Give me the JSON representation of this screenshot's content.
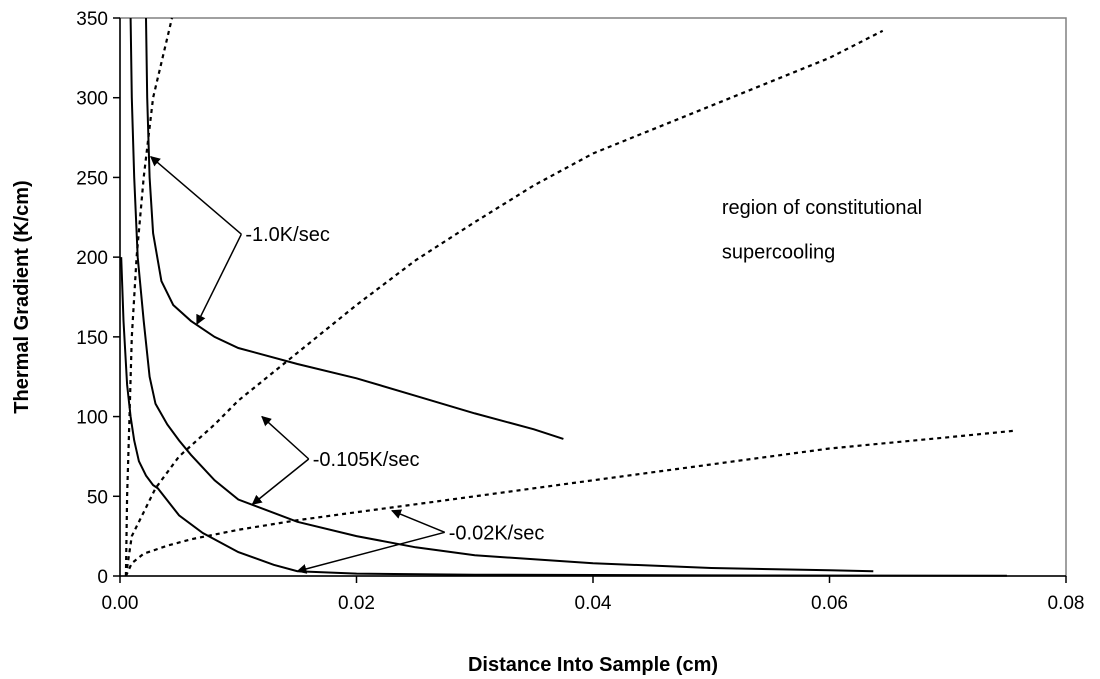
{
  "chart_data": {
    "type": "line",
    "xlabel": "Distance Into Sample (cm)",
    "ylabel": "Thermal Gradient (K/cm)",
    "xlim": [
      0,
      0.08
    ],
    "ylim": [
      0,
      350
    ],
    "x_ticks": [
      "0.00",
      "0.02",
      "0.04",
      "0.06",
      "0.08"
    ],
    "y_ticks": [
      "0",
      "50",
      "100",
      "150",
      "200",
      "250",
      "300",
      "350"
    ],
    "grid": false,
    "legend": "none",
    "series": [
      {
        "style": "solid",
        "points": [
          [
            0.0022,
            350
          ],
          [
            0.0023,
            300
          ],
          [
            0.0025,
            250
          ],
          [
            0.0028,
            215
          ],
          [
            0.0035,
            185
          ],
          [
            0.0045,
            170
          ],
          [
            0.006,
            160
          ],
          [
            0.008,
            150
          ],
          [
            0.01,
            143
          ],
          [
            0.015,
            133
          ],
          [
            0.02,
            124
          ],
          [
            0.025,
            113
          ],
          [
            0.03,
            102
          ],
          [
            0.035,
            92
          ],
          [
            0.0375,
            86
          ]
        ]
      },
      {
        "style": "solid",
        "points": [
          [
            0.0009,
            350
          ],
          [
            0.001,
            300
          ],
          [
            0.0012,
            250
          ],
          [
            0.0015,
            200
          ],
          [
            0.002,
            160
          ],
          [
            0.0025,
            125
          ],
          [
            0.003,
            108
          ],
          [
            0.004,
            95
          ],
          [
            0.005,
            85
          ],
          [
            0.006,
            76
          ],
          [
            0.008,
            60
          ],
          [
            0.01,
            48
          ],
          [
            0.015,
            34
          ],
          [
            0.02,
            25
          ],
          [
            0.025,
            18
          ],
          [
            0.03,
            13
          ],
          [
            0.04,
            8
          ],
          [
            0.05,
            5
          ],
          [
            0.06,
            3.6
          ],
          [
            0.0637,
            3
          ]
        ]
      },
      {
        "style": "solid",
        "points": [
          [
            0.0001,
            200
          ],
          [
            0.0003,
            160
          ],
          [
            0.0006,
            120
          ],
          [
            0.0009,
            100
          ],
          [
            0.0012,
            85
          ],
          [
            0.0016,
            72
          ],
          [
            0.0022,
            63
          ],
          [
            0.0028,
            57
          ],
          [
            0.0032,
            55
          ],
          [
            0.005,
            38
          ],
          [
            0.007,
            27
          ],
          [
            0.01,
            15
          ],
          [
            0.013,
            7
          ],
          [
            0.015,
            3
          ],
          [
            0.02,
            1.5
          ],
          [
            0.03,
            0.8
          ],
          [
            0.05,
            0.4
          ],
          [
            0.075,
            0.1
          ]
        ]
      },
      {
        "style": "dotted",
        "points": [
          [
            0.0005,
            0
          ],
          [
            0.0006,
            50
          ],
          [
            0.0008,
            100
          ],
          [
            0.001,
            150
          ],
          [
            0.0014,
            200
          ],
          [
            0.002,
            250
          ],
          [
            0.0028,
            300
          ],
          [
            0.0044,
            350
          ]
        ]
      },
      {
        "style": "dotted",
        "points": [
          [
            0.0005,
            0
          ],
          [
            0.001,
            25
          ],
          [
            0.002,
            40
          ],
          [
            0.003,
            55
          ],
          [
            0.005,
            75
          ],
          [
            0.008,
            95
          ],
          [
            0.01,
            110
          ],
          [
            0.015,
            140
          ],
          [
            0.02,
            170
          ],
          [
            0.025,
            198
          ],
          [
            0.03,
            222
          ],
          [
            0.035,
            245
          ],
          [
            0.04,
            265
          ],
          [
            0.05,
            295
          ],
          [
            0.06,
            325
          ],
          [
            0.0645,
            342
          ]
        ]
      },
      {
        "style": "dotted",
        "points": [
          [
            0.0005,
            0
          ],
          [
            0.001,
            8
          ],
          [
            0.002,
            14
          ],
          [
            0.004,
            19
          ],
          [
            0.006,
            23
          ],
          [
            0.01,
            29
          ],
          [
            0.015,
            35
          ],
          [
            0.02,
            40
          ],
          [
            0.025,
            45
          ],
          [
            0.03,
            50
          ],
          [
            0.04,
            60
          ],
          [
            0.05,
            70
          ],
          [
            0.06,
            80
          ],
          [
            0.07,
            87
          ],
          [
            0.0755,
            91
          ]
        ]
      }
    ],
    "annotations": [
      {
        "text": "-1.0K/sec",
        "x": 0.0106,
        "y": 210,
        "arrows": [
          [
            0.0026,
            263
          ],
          [
            0.0065,
            158
          ]
        ]
      },
      {
        "text": "-0.105K/sec",
        "x": 0.0163,
        "y": 69,
        "arrows": [
          [
            0.012,
            100
          ],
          [
            0.0112,
            45
          ]
        ]
      },
      {
        "text": "-0.02K/sec",
        "x": 0.0278,
        "y": 23,
        "arrows": [
          [
            0.023,
            41
          ],
          [
            0.015,
            3
          ]
        ]
      },
      {
        "text": "region of constitutional",
        "x": 0.0509,
        "y": 227
      },
      {
        "text": "supercooling",
        "x": 0.0509,
        "y": 199
      }
    ]
  }
}
